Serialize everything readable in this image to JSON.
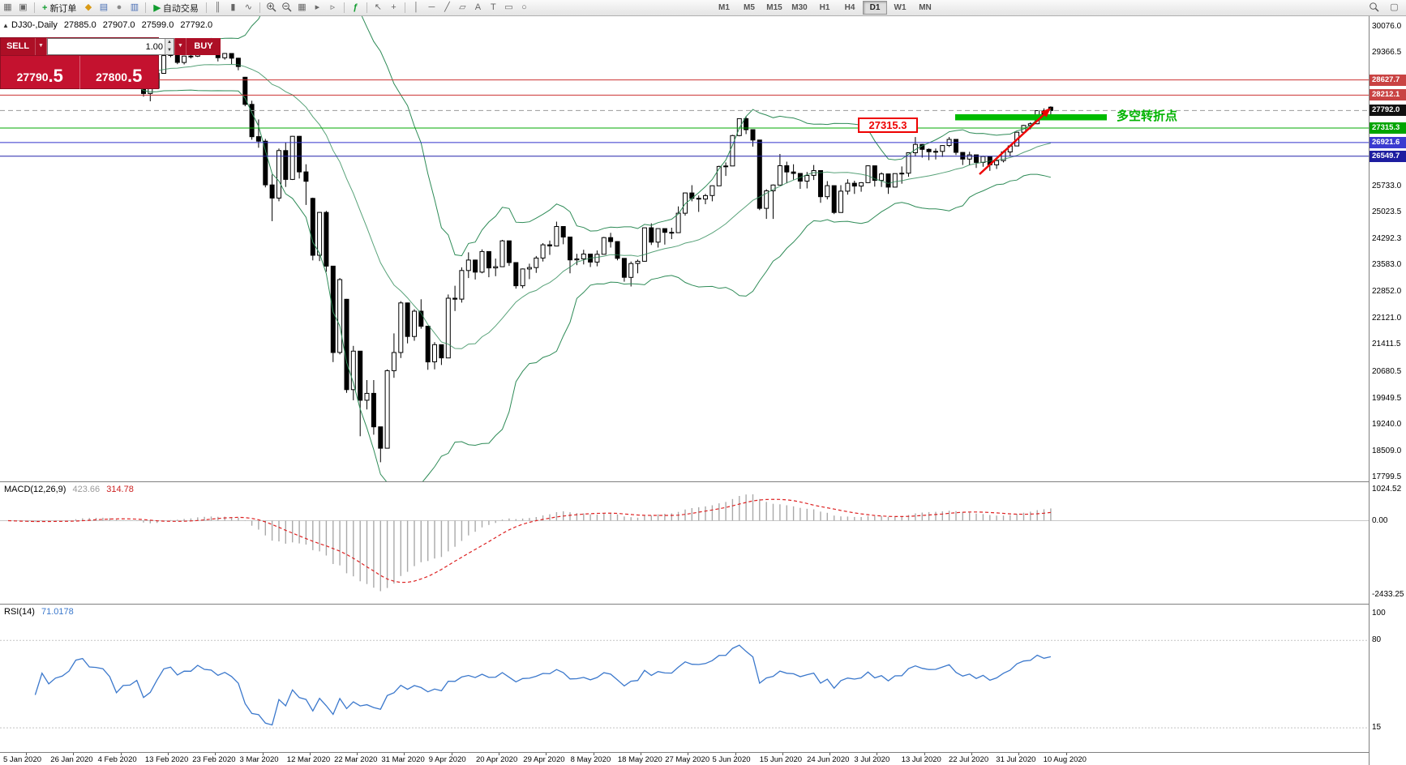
{
  "toolbar": {
    "new_order": "新订单",
    "autotrading": "自动交易",
    "timeframes": [
      "M1",
      "M5",
      "M15",
      "M30",
      "H1",
      "H4",
      "D1",
      "W1",
      "MN"
    ],
    "active_timeframe": "D1"
  },
  "trade_panel": {
    "sell_label": "SELL",
    "buy_label": "BUY",
    "volume": "1.00",
    "sell_price_main": "27790",
    "sell_price_frac": ".5",
    "buy_price_main": "27800",
    "buy_price_frac": ".5"
  },
  "chart_data": {
    "type": "candlestick",
    "title_line": "DJ30-,Daily",
    "ohlc": {
      "open": "27885.0",
      "high": "27907.0",
      "low": "27599.0",
      "close": "27792.0"
    },
    "y_axis_labels": [
      30076.0,
      29366.5,
      25733.0,
      25023.5,
      24292.3,
      23583.0,
      22852.0,
      22121.0,
      21411.5,
      20680.5,
      19949.5,
      19240.0,
      18509.0,
      17799.5
    ],
    "price_lines": [
      {
        "price": 28627.7,
        "label": "28627.7",
        "color": "#cc3333",
        "badge": "#c94343",
        "style": "solid"
      },
      {
        "price": 28212.1,
        "label": "28212.1",
        "color": "#cc3333",
        "badge": "#c94343",
        "style": "solid"
      },
      {
        "price": 27792.0,
        "label": "27792.0",
        "color": "#999999",
        "badge": "#111111",
        "style": "dashed"
      },
      {
        "price": 27315.3,
        "label": "27315.3",
        "color": "#00aa00",
        "badge": "#00a400",
        "style": "solid"
      },
      {
        "price": 26921.6,
        "label": "26921.6",
        "color": "#3333cc",
        "badge": "#3b3bd0",
        "style": "solid"
      },
      {
        "price": 26549.7,
        "label": "26549.7",
        "color": "#2222aa",
        "badge": "#1d1da0",
        "style": "solid"
      }
    ],
    "x_labels": [
      "5 Jan 2020",
      "26 Jan 2020",
      "4 Feb 2020",
      "13 Feb 2020",
      "23 Feb 2020",
      "3 Mar 2020",
      "12 Mar 2020",
      "22 Mar 2020",
      "31 Mar 2020",
      "9 Apr 2020",
      "20 Apr 2020",
      "29 Apr 2020",
      "8 May 2020",
      "18 May 2020",
      "27 May 2020",
      "5 Jun 2020",
      "15 Jun 2020",
      "24 Jun 2020",
      "3 Jul 2020",
      "13 Jul 2020",
      "22 Jul 2020",
      "31 Jul 2020",
      "10 Aug 2020"
    ],
    "indicators": {
      "bollinger": {
        "color": "#2E8B57"
      },
      "macd": {
        "label": "MACD(12,26,9)",
        "value_main": "423.66",
        "value_signal": "314.78",
        "axis_labels": [
          "1024.52",
          "0.00",
          "-2433.25"
        ]
      },
      "rsi": {
        "label": "RSI(14)",
        "value": "71.0178",
        "axis_labels": [
          "100",
          "80",
          "15"
        ],
        "levels": [
          80,
          15
        ]
      }
    },
    "annotations": {
      "price_callout": "27315.3",
      "turning_point_text": "多空转折点",
      "zone_color": "#00bb00",
      "arrow_color": "#ee0000"
    },
    "candles": [
      [
        28639,
        28872,
        28565,
        28868
      ],
      [
        28868,
        28890,
        28610,
        28635
      ],
      [
        28635,
        28710,
        28420,
        28704
      ],
      [
        28704,
        28715,
        28556,
        28584
      ],
      [
        28584,
        28760,
        28530,
        28745
      ],
      [
        28745,
        28980,
        28740,
        28957
      ],
      [
        28957,
        29010,
        28820,
        28824
      ],
      [
        28824,
        28920,
        28750,
        28907
      ],
      [
        28907,
        28970,
        28880,
        28939
      ],
      [
        28939,
        29060,
        28930,
        29030
      ],
      [
        29030,
        29300,
        29020,
        29297
      ],
      [
        29297,
        29374,
        29230,
        29348
      ],
      [
        29348,
        29350,
        29130,
        29196
      ],
      [
        29196,
        29320,
        29150,
        29186
      ],
      [
        29186,
        29230,
        29060,
        29160
      ],
      [
        29160,
        29180,
        28940,
        28990
      ],
      [
        28770,
        28790,
        28440,
        28536
      ],
      [
        28536,
        28770,
        28520,
        28723
      ],
      [
        28723,
        28790,
        28580,
        28734
      ],
      [
        28734,
        28945,
        28680,
        28859
      ],
      [
        28859,
        28870,
        28170,
        28256
      ],
      [
        28256,
        28420,
        28045,
        28400
      ],
      [
        28400,
        28820,
        28390,
        28808
      ],
      [
        28808,
        29300,
        28800,
        29291
      ],
      [
        29291,
        29408,
        29245,
        29380
      ],
      [
        29380,
        29390,
        29056,
        29103
      ],
      [
        29103,
        29290,
        29050,
        29277
      ],
      [
        29277,
        29415,
        29210,
        29276
      ],
      [
        29276,
        29560,
        29250,
        29551
      ],
      [
        29551,
        29568,
        29370,
        29423
      ],
      [
        29423,
        29482,
        29330,
        29398
      ],
      [
        29398,
        29400,
        29130,
        29232
      ],
      [
        29232,
        29360,
        29180,
        29348
      ],
      [
        29348,
        29350,
        29060,
        29220
      ],
      [
        29220,
        29230,
        28890,
        28992
      ],
      [
        28700,
        28710,
        27910,
        27961
      ],
      [
        27961,
        28060,
        26998,
        27081
      ],
      [
        27081,
        27550,
        26780,
        26958
      ],
      [
        26958,
        27020,
        25700,
        25767
      ],
      [
        25767,
        26050,
        24780,
        25409
      ],
      [
        25409,
        26760,
        25320,
        26703
      ],
      [
        26703,
        26930,
        25710,
        25917
      ],
      [
        25917,
        27100,
        25900,
        27091
      ],
      [
        27091,
        27100,
        25940,
        26121
      ],
      [
        26121,
        26330,
        25220,
        25865
      ],
      [
        25400,
        25420,
        23710,
        23851
      ],
      [
        23851,
        25030,
        23690,
        25018
      ],
      [
        25018,
        25060,
        23400,
        23553
      ],
      [
        23553,
        23560,
        20940,
        21200
      ],
      [
        21200,
        23230,
        21150,
        23186
      ],
      [
        22650,
        22660,
        20100,
        20188
      ],
      [
        20188,
        21380,
        19900,
        21237
      ],
      [
        21237,
        21240,
        18920,
        19899
      ],
      [
        19899,
        20450,
        19650,
        20087
      ],
      [
        20087,
        20450,
        18960,
        19174
      ],
      [
        19174,
        19180,
        18210,
        18592
      ],
      [
        18592,
        20740,
        18590,
        20705
      ],
      [
        20705,
        21720,
        20510,
        21200
      ],
      [
        21200,
        22600,
        21050,
        22552
      ],
      [
        22552,
        22560,
        21450,
        21637
      ],
      [
        21637,
        22380,
        21520,
        22327
      ],
      [
        22327,
        22650,
        21850,
        21917
      ],
      [
        21917,
        21920,
        20730,
        20944
      ],
      [
        20944,
        21480,
        20740,
        21413
      ],
      [
        21413,
        21420,
        20860,
        21053
      ],
      [
        21053,
        22780,
        21050,
        22680
      ],
      [
        22680,
        23020,
        22330,
        22654
      ],
      [
        22654,
        23520,
        22560,
        23434
      ],
      [
        23434,
        23930,
        23230,
        23719
      ],
      [
        23719,
        23730,
        23190,
        23390
      ],
      [
        23390,
        24010,
        23360,
        23950
      ],
      [
        23950,
        23960,
        23250,
        23504
      ],
      [
        23504,
        23760,
        23280,
        23537
      ],
      [
        23537,
        24270,
        23530,
        24242
      ],
      [
        24242,
        24250,
        23560,
        23650
      ],
      [
        23650,
        23660,
        22940,
        23019
      ],
      [
        23019,
        23490,
        22950,
        23476
      ],
      [
        23476,
        23620,
        23200,
        23515
      ],
      [
        23515,
        23830,
        23370,
        23775
      ],
      [
        23775,
        24180,
        23680,
        24134
      ],
      [
        24134,
        24250,
        23860,
        24102
      ],
      [
        24102,
        24765,
        24100,
        24634
      ],
      [
        24634,
        24640,
        24150,
        24346
      ],
      [
        24346,
        24350,
        23360,
        23724
      ],
      [
        23724,
        23890,
        23580,
        23750
      ],
      [
        23750,
        24000,
        23600,
        23883
      ],
      [
        23883,
        23890,
        23530,
        23665
      ],
      [
        23665,
        23980,
        23550,
        23876
      ],
      [
        23876,
        24350,
        23870,
        24331
      ],
      [
        24331,
        24460,
        24060,
        24222
      ],
      [
        24222,
        24230,
        23710,
        23765
      ],
      [
        23765,
        23770,
        23130,
        23248
      ],
      [
        23248,
        23680,
        23000,
        23625
      ],
      [
        23625,
        23730,
        23360,
        23685
      ],
      [
        23685,
        24600,
        23680,
        24597
      ],
      [
        24597,
        24720,
        24130,
        24207
      ],
      [
        24207,
        24580,
        24060,
        24576
      ],
      [
        24576,
        24580,
        24140,
        24474
      ],
      [
        24474,
        24600,
        24290,
        24465
      ],
      [
        24465,
        25180,
        24460,
        24995
      ],
      [
        24995,
        25560,
        24930,
        25548
      ],
      [
        25548,
        25760,
        25320,
        25401
      ],
      [
        25401,
        25480,
        25030,
        25383
      ],
      [
        25383,
        25520,
        25240,
        25475
      ],
      [
        25475,
        25750,
        25320,
        25743
      ],
      [
        25743,
        26290,
        25740,
        26270
      ],
      [
        26270,
        26380,
        26010,
        26282
      ],
      [
        26282,
        27130,
        26280,
        27111
      ],
      [
        27111,
        27580,
        27090,
        27572
      ],
      [
        27572,
        27640,
        27150,
        27272
      ],
      [
        27272,
        27280,
        26810,
        26990
      ],
      [
        26990,
        26995,
        25080,
        25128
      ],
      [
        25128,
        25650,
        24840,
        25605
      ],
      [
        25605,
        25780,
        24840,
        25763
      ],
      [
        25763,
        26610,
        25760,
        26290
      ],
      [
        26290,
        26400,
        25810,
        26120
      ],
      [
        26120,
        26330,
        25910,
        26080
      ],
      [
        26080,
        26090,
        25660,
        25871
      ],
      [
        25871,
        26120,
        25670,
        26025
      ],
      [
        26025,
        26310,
        25900,
        26156
      ],
      [
        26156,
        26160,
        25280,
        25445
      ],
      [
        25445,
        25870,
        25370,
        25746
      ],
      [
        25746,
        25750,
        24970,
        25016
      ],
      [
        25016,
        25760,
        25010,
        25596
      ],
      [
        25596,
        25920,
        25500,
        25813
      ],
      [
        25813,
        25880,
        25520,
        25735
      ],
      [
        25735,
        25840,
        25580,
        25827
      ],
      [
        25827,
        26300,
        25820,
        26287
      ],
      [
        26287,
        26290,
        25720,
        25890
      ],
      [
        25890,
        26110,
        25710,
        26067
      ],
      [
        26067,
        26070,
        25520,
        25706
      ],
      [
        25706,
        26080,
        25700,
        26075
      ],
      [
        26075,
        26270,
        25800,
        26086
      ],
      [
        26086,
        26650,
        25990,
        26643
      ],
      [
        26643,
        27070,
        26550,
        26870
      ],
      [
        26870,
        26880,
        26510,
        26735
      ],
      [
        26735,
        26760,
        26440,
        26672
      ],
      [
        26672,
        26760,
        26460,
        26681
      ],
      [
        26681,
        26850,
        26530,
        26840
      ],
      [
        26840,
        27070,
        26800,
        27006
      ],
      [
        27006,
        27010,
        26580,
        26652
      ],
      [
        26652,
        26660,
        26310,
        26470
      ],
      [
        26470,
        26670,
        26300,
        26585
      ],
      [
        26585,
        26590,
        26230,
        26379
      ],
      [
        26379,
        26560,
        26260,
        26540
      ],
      [
        26540,
        26550,
        26150,
        26313
      ],
      [
        26313,
        26480,
        26200,
        26428
      ],
      [
        26428,
        26700,
        26380,
        26664
      ],
      [
        26664,
        26860,
        26550,
        26828
      ],
      [
        26828,
        27210,
        26820,
        27202
      ],
      [
        27202,
        27400,
        27150,
        27387
      ],
      [
        27387,
        27470,
        27280,
        27433
      ],
      [
        27433,
        27800,
        27420,
        27791
      ],
      [
        27791,
        27850,
        27600,
        27687
      ],
      [
        27885,
        27907,
        27599,
        27792
      ]
    ]
  }
}
